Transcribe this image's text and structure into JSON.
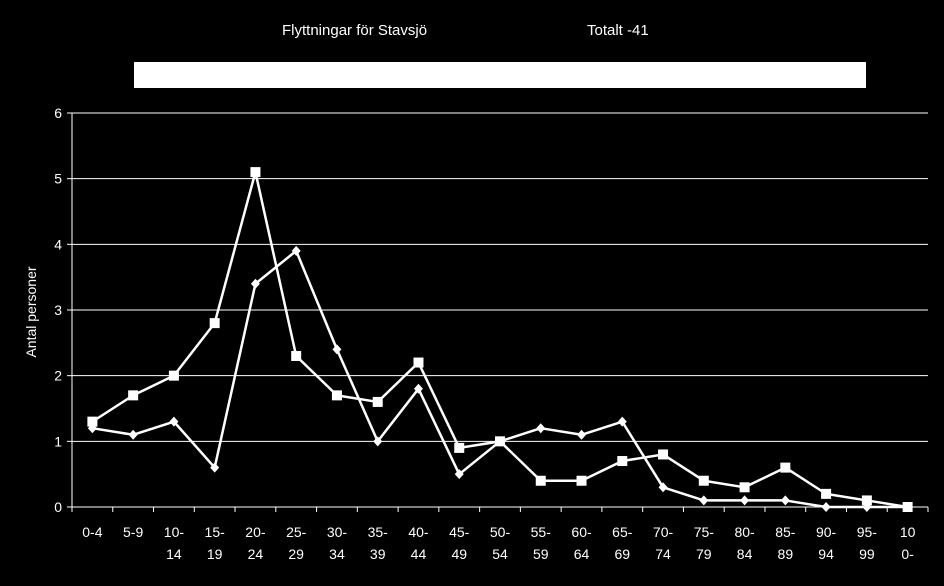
{
  "chart_data": {
    "type": "line",
    "title": "Flyttningar för Stavsjö",
    "subtitle": "Totalt -41",
    "xlabel": "",
    "ylabel": "Antal personer",
    "ylim": [
      0,
      6
    ],
    "yticks": [
      "0",
      "1",
      "2",
      "3",
      "4",
      "5",
      "6"
    ],
    "grid": true,
    "categories": [
      "0-4",
      "5-9",
      "10-14",
      "15-19",
      "20-24",
      "25-29",
      "30-34",
      "35-39",
      "40-44",
      "45-49",
      "50-54",
      "55-59",
      "60-64",
      "65-69",
      "70-74",
      "75-79",
      "80-84",
      "85-89",
      "90-94",
      "95-99",
      "100-"
    ],
    "category_labels": [
      [
        "0-4"
      ],
      [
        "5-9"
      ],
      [
        "10-",
        "14"
      ],
      [
        "15-",
        "19"
      ],
      [
        "20-",
        "24"
      ],
      [
        "25-",
        "29"
      ],
      [
        "30-",
        "34"
      ],
      [
        "35-",
        "39"
      ],
      [
        "40-",
        "44"
      ],
      [
        "45-",
        "49"
      ],
      [
        "50-",
        "54"
      ],
      [
        "55-",
        "59"
      ],
      [
        "60-",
        "64"
      ],
      [
        "65-",
        "69"
      ],
      [
        "70-",
        "74"
      ],
      [
        "75-",
        "79"
      ],
      [
        "80-",
        "84"
      ],
      [
        "85-",
        "89"
      ],
      [
        "90-",
        "94"
      ],
      [
        "95-",
        "99"
      ],
      [
        "10",
        "0-"
      ]
    ],
    "series": [
      {
        "marker": "square",
        "values": [
          1.3,
          1.7,
          2.0,
          2.8,
          5.1,
          2.3,
          1.7,
          1.6,
          2.2,
          0.9,
          1.0,
          0.4,
          0.4,
          0.7,
          0.8,
          0.4,
          0.3,
          0.6,
          0.2,
          0.1,
          0.0
        ]
      },
      {
        "marker": "diamond",
        "values": [
          1.2,
          1.1,
          1.3,
          0.6,
          3.4,
          3.9,
          2.4,
          1.0,
          1.8,
          0.5,
          1.0,
          1.2,
          1.1,
          1.3,
          0.3,
          0.1,
          0.1,
          0.1,
          0.0,
          0.0,
          0.0
        ]
      }
    ],
    "colors": {
      "background": "#000000",
      "lines": "#ffffff",
      "grid": "#ffffff"
    }
  }
}
